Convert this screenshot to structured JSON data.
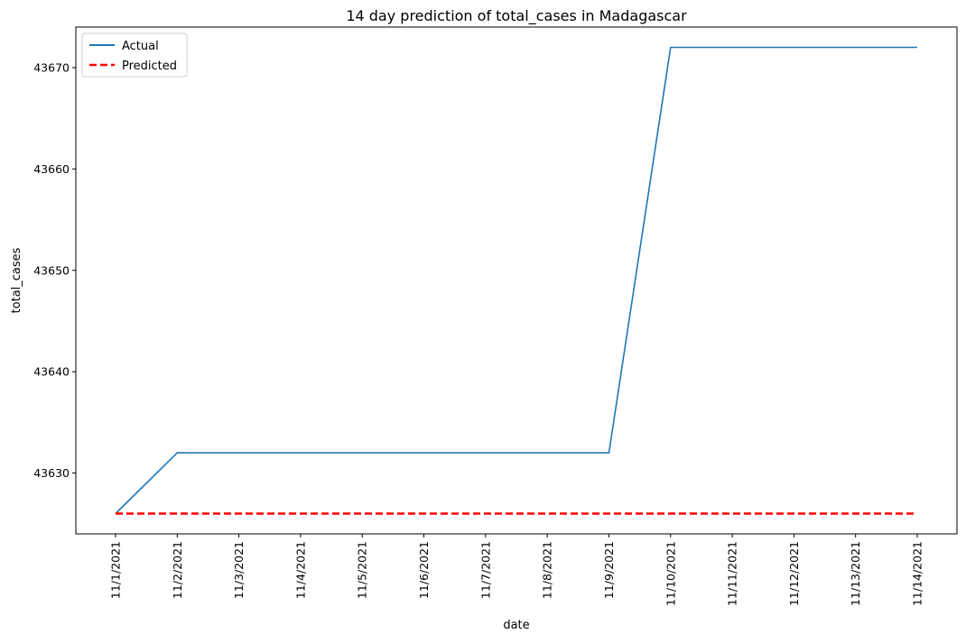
{
  "chart_data": {
    "type": "line",
    "title": "14 day prediction of total_cases in Madagascar",
    "xlabel": "date",
    "ylabel": "total_cases",
    "categories": [
      "11/1/2021",
      "11/2/2021",
      "11/3/2021",
      "11/4/2021",
      "11/5/2021",
      "11/6/2021",
      "11/7/2021",
      "11/8/2021",
      "11/9/2021",
      "11/10/2021",
      "11/11/2021",
      "11/12/2021",
      "11/13/2021",
      "11/14/2021"
    ],
    "series": [
      {
        "name": "Actual",
        "color": "#1f77b4",
        "style": "solid",
        "values": [
          43626,
          43632,
          43632,
          43632,
          43632,
          43632,
          43632,
          43632,
          43632,
          43672,
          43672,
          43672,
          43672,
          43672
        ]
      },
      {
        "name": "Predicted",
        "color": "#ff0000",
        "style": "dashed",
        "values": [
          43626,
          43626,
          43626,
          43626,
          43626,
          43626,
          43626,
          43626,
          43626,
          43626,
          43626,
          43626,
          43626,
          43626
        ]
      }
    ],
    "ylim": [
      43624,
      43674
    ],
    "yticks": [
      43630,
      43640,
      43650,
      43660,
      43670
    ],
    "grid": false,
    "legend_position": "top-left"
  }
}
